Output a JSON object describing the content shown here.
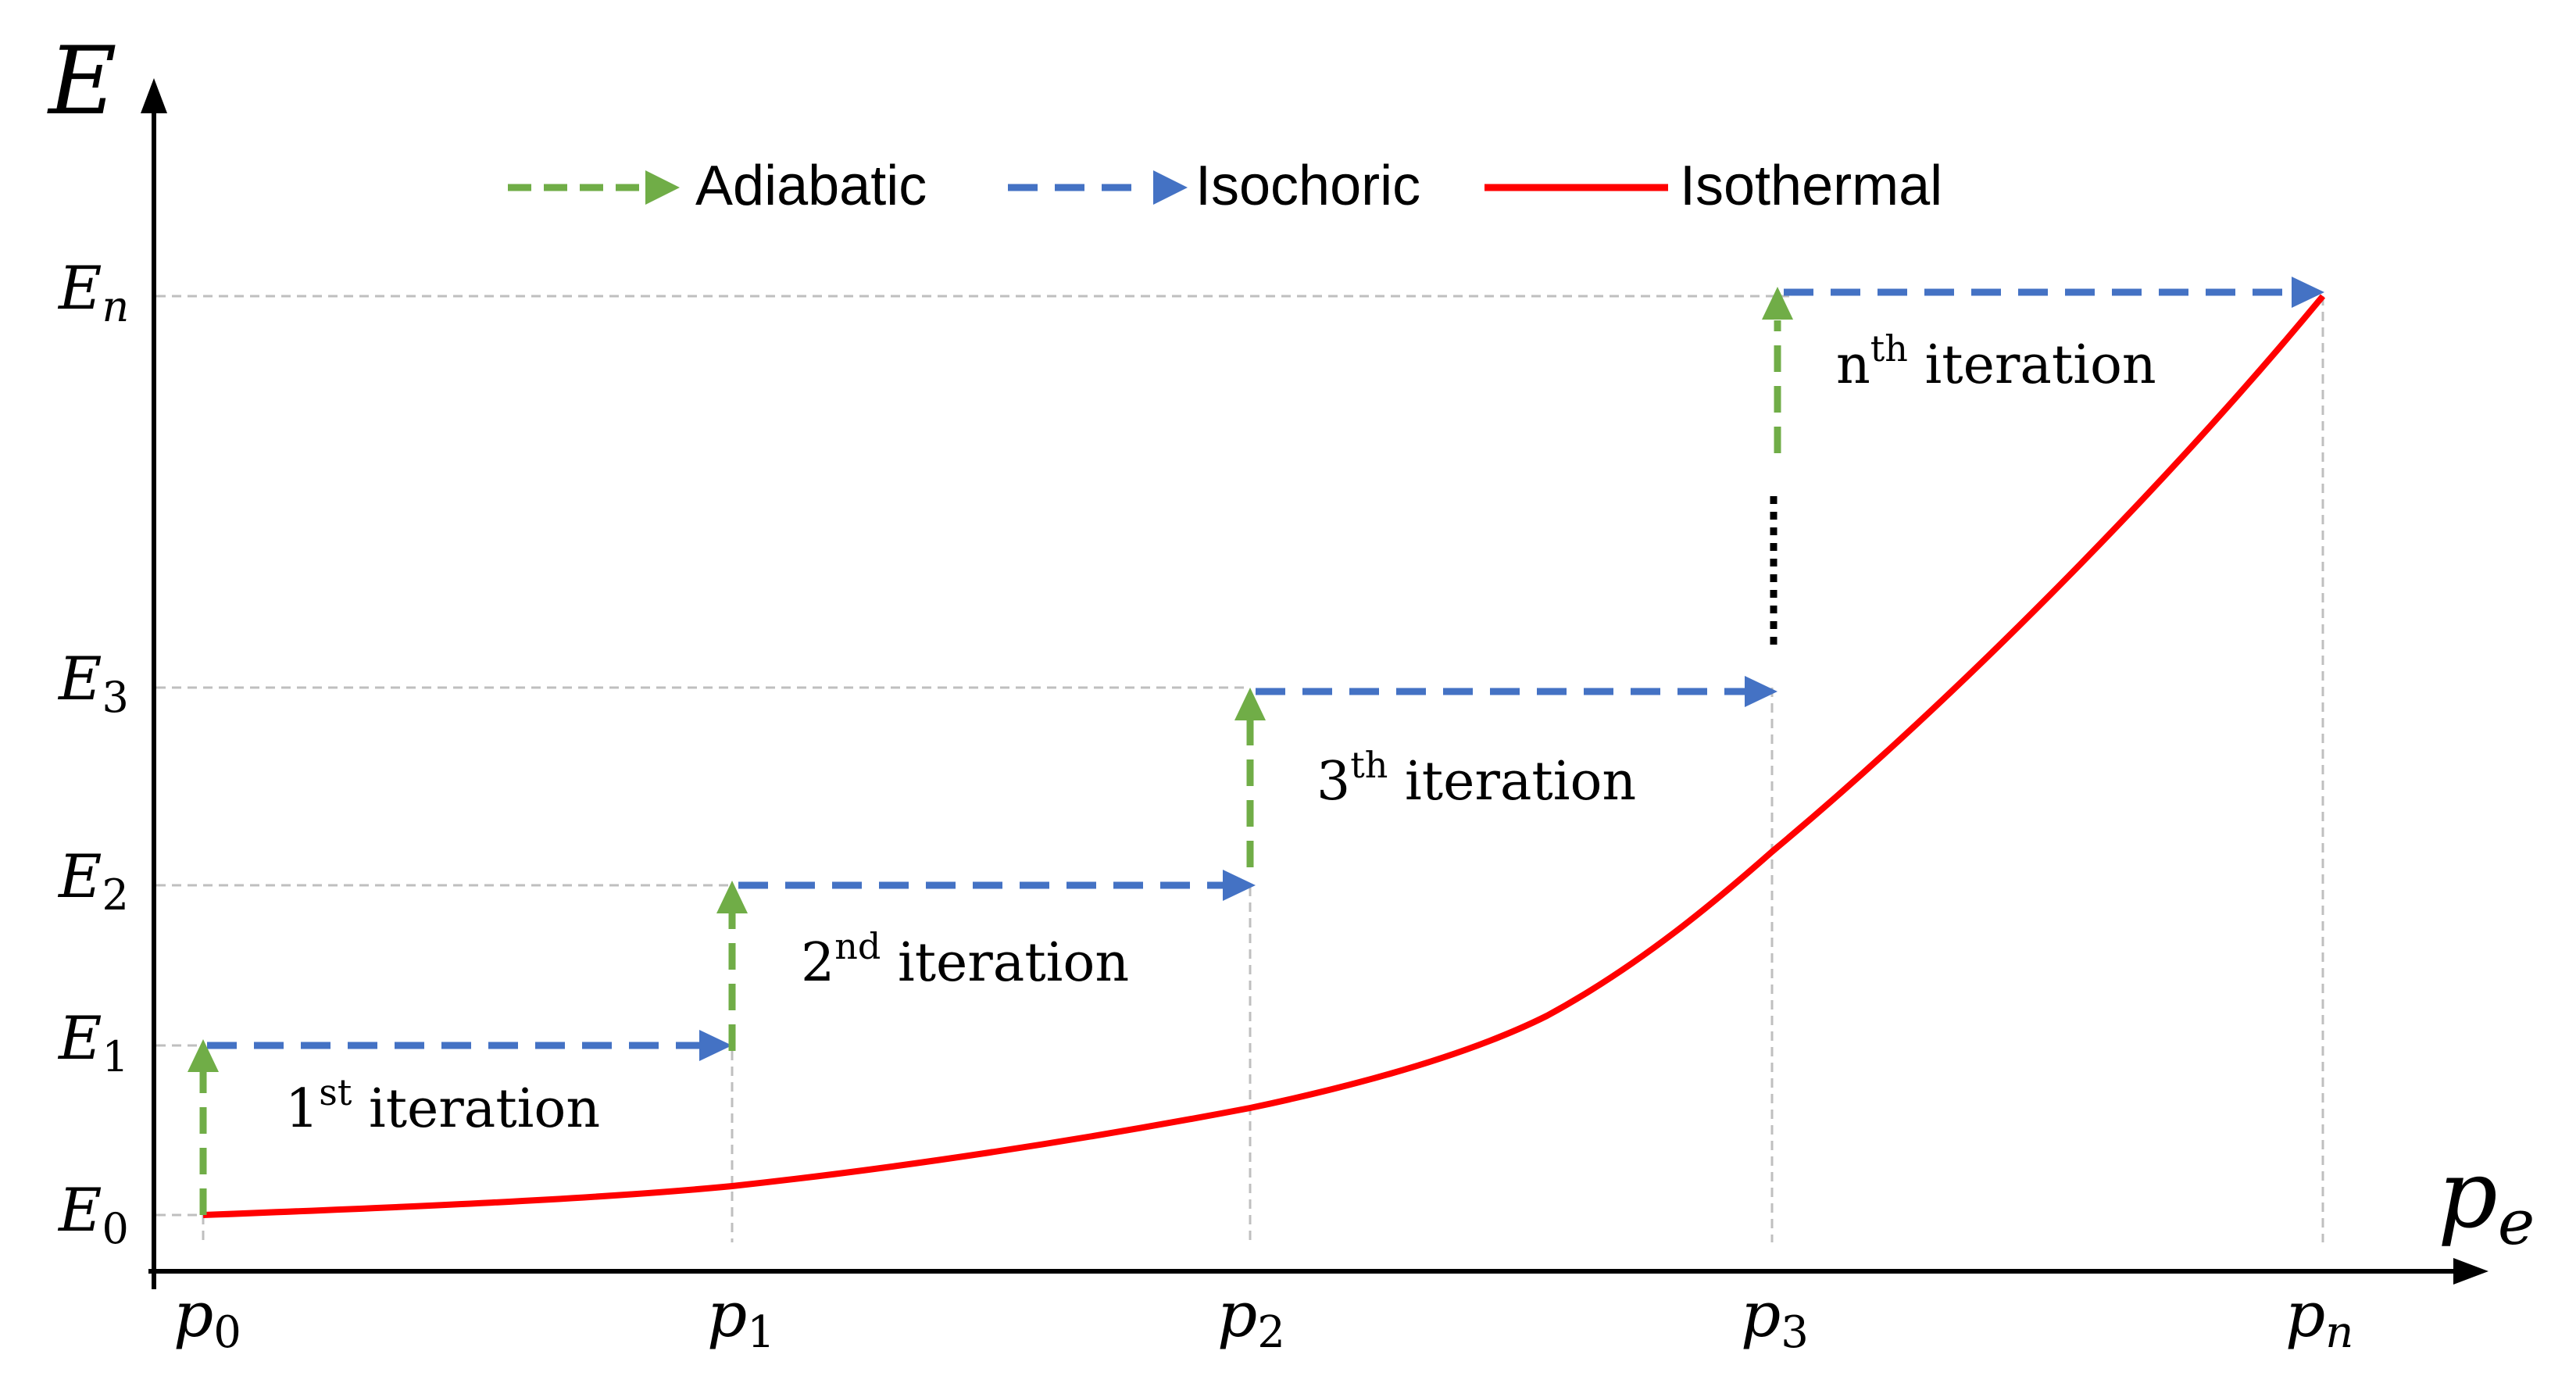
{
  "axes": {
    "y_label": "E",
    "x_label": "p",
    "x_label_sub": "e"
  },
  "legend": {
    "adiabatic": "Adiabatic",
    "isochoric": "Isochoric",
    "isothermal": "Isothermal"
  },
  "y_ticks": [
    {
      "main": "E",
      "sub": "0"
    },
    {
      "main": "E",
      "sub": "1"
    },
    {
      "main": "E",
      "sub": "2"
    },
    {
      "main": "E",
      "sub": "3"
    },
    {
      "main": "E",
      "sub": "n"
    }
  ],
  "x_ticks": [
    {
      "main": "p",
      "sub": "0"
    },
    {
      "main": "p",
      "sub": "1"
    },
    {
      "main": "p",
      "sub": "2"
    },
    {
      "main": "p",
      "sub": "3"
    },
    {
      "main": "p",
      "sub": "n"
    }
  ],
  "iterations": [
    {
      "num": "1",
      "sup": "st",
      "text": " iteration"
    },
    {
      "num": "2",
      "sup": "nd",
      "text": " iteration"
    },
    {
      "num": "3",
      "sup": "th",
      "text": " iteration"
    },
    {
      "num": "n",
      "sup": "th",
      "text": " iteration"
    }
  ],
  "colors": {
    "adiabatic": "#70ad47",
    "isochoric": "#4472c4",
    "isothermal": "#ff0000",
    "guide": "#bfbfbf",
    "axis": "#000000"
  }
}
